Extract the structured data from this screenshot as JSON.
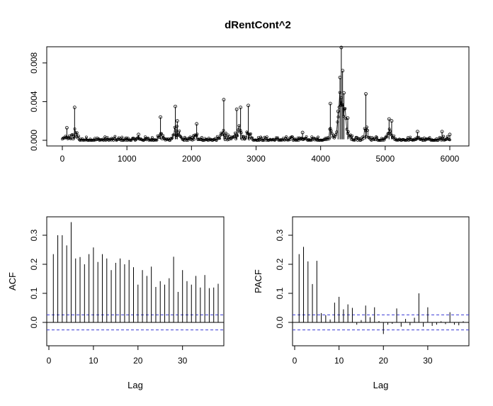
{
  "title": "dRentCont^2",
  "colors": {
    "line": "#000000",
    "ci": "#3b3bd6",
    "frame": "#000000"
  },
  "chart_data": [
    {
      "type": "line",
      "name": "series",
      "title": "dRentCont^2",
      "xlabel": "",
      "ylabel": "",
      "xlim": [
        0,
        6000
      ],
      "ylim": [
        0,
        0.0096
      ],
      "xticks": [
        0,
        1000,
        2000,
        3000,
        4000,
        5000,
        6000
      ],
      "yticks": [
        0.0,
        0.004,
        0.008
      ],
      "ytick_labels": [
        "0.000",
        "0.004",
        "0.008"
      ],
      "markers": "open-circle",
      "peaks": [
        {
          "x": 70,
          "y": 0.0013
        },
        {
          "x": 190,
          "y": 0.0034
        },
        {
          "x": 1180,
          "y": 0.0006
        },
        {
          "x": 1520,
          "y": 0.0024
        },
        {
          "x": 1750,
          "y": 0.0035
        },
        {
          "x": 1780,
          "y": 0.002
        },
        {
          "x": 2080,
          "y": 0.0017
        },
        {
          "x": 2500,
          "y": 0.0042
        },
        {
          "x": 2700,
          "y": 0.0032
        },
        {
          "x": 2760,
          "y": 0.0034
        },
        {
          "x": 2880,
          "y": 0.0036
        },
        {
          "x": 3720,
          "y": 0.0008
        },
        {
          "x": 4150,
          "y": 0.0038
        },
        {
          "x": 4270,
          "y": 0.003
        },
        {
          "x": 4300,
          "y": 0.0065
        },
        {
          "x": 4320,
          "y": 0.0096
        },
        {
          "x": 4340,
          "y": 0.0072
        },
        {
          "x": 4360,
          "y": 0.0049
        },
        {
          "x": 4420,
          "y": 0.0023
        },
        {
          "x": 4700,
          "y": 0.0048
        },
        {
          "x": 5060,
          "y": 0.0022
        },
        {
          "x": 5100,
          "y": 0.002
        },
        {
          "x": 5500,
          "y": 0.0009
        },
        {
          "x": 5880,
          "y": 0.0009
        },
        {
          "x": 6000,
          "y": 0.0006
        }
      ]
    },
    {
      "type": "bar",
      "name": "acf",
      "xlabel": "Lag",
      "ylabel": "ACF",
      "xlim": [
        0,
        38
      ],
      "ylim": [
        -0.05,
        0.35
      ],
      "xticks": [
        0,
        10,
        20,
        30
      ],
      "yticks": [
        0.0,
        0.1,
        0.2,
        0.3
      ],
      "ytick_labels": [
        "0.0",
        "0.1",
        "0.2",
        "0.3"
      ],
      "ci": 0.026,
      "lags": [
        1,
        2,
        3,
        4,
        5,
        6,
        7,
        8,
        9,
        10,
        11,
        12,
        13,
        14,
        15,
        16,
        17,
        18,
        19,
        20,
        21,
        22,
        23,
        24,
        25,
        26,
        27,
        28,
        29,
        30,
        31,
        32,
        33,
        34,
        35,
        36,
        37,
        38
      ],
      "values": [
        0.235,
        0.3,
        0.3,
        0.265,
        0.345,
        0.22,
        0.225,
        0.2,
        0.235,
        0.258,
        0.208,
        0.235,
        0.22,
        0.18,
        0.205,
        0.22,
        0.2,
        0.215,
        0.19,
        0.13,
        0.18,
        0.16,
        0.192,
        0.122,
        0.142,
        0.13,
        0.152,
        0.226,
        0.105,
        0.18,
        0.142,
        0.13,
        0.16,
        0.12,
        0.163,
        0.118,
        0.12,
        0.133
      ]
    },
    {
      "type": "bar",
      "name": "pacf",
      "xlabel": "Lag",
      "ylabel": "PACF",
      "xlim": [
        0,
        38
      ],
      "ylim": [
        -0.05,
        0.35
      ],
      "xticks": [
        0,
        10,
        20,
        30
      ],
      "yticks": [
        0.0,
        0.1,
        0.2,
        0.3
      ],
      "ytick_labels": [
        "0.0",
        "0.1",
        "0.2",
        "0.3"
      ],
      "ci": 0.026,
      "lags": [
        1,
        2,
        3,
        4,
        5,
        6,
        7,
        8,
        9,
        10,
        11,
        12,
        13,
        14,
        15,
        16,
        17,
        18,
        19,
        20,
        21,
        22,
        23,
        24,
        25,
        26,
        27,
        28,
        29,
        30,
        31,
        32,
        33,
        34,
        35,
        36,
        37,
        38
      ],
      "values": [
        0.235,
        0.26,
        0.21,
        0.132,
        0.212,
        0.032,
        0.025,
        0.01,
        0.068,
        0.088,
        0.045,
        0.062,
        0.05,
        -0.008,
        0.008,
        0.058,
        0.018,
        0.052,
        0.005,
        -0.04,
        -0.008,
        -0.005,
        0.048,
        -0.015,
        0.012,
        -0.01,
        0.016,
        0.1,
        -0.015,
        0.052,
        -0.012,
        -0.008,
        0.004,
        -0.006,
        0.035,
        -0.008,
        -0.01,
        0.004
      ]
    }
  ]
}
